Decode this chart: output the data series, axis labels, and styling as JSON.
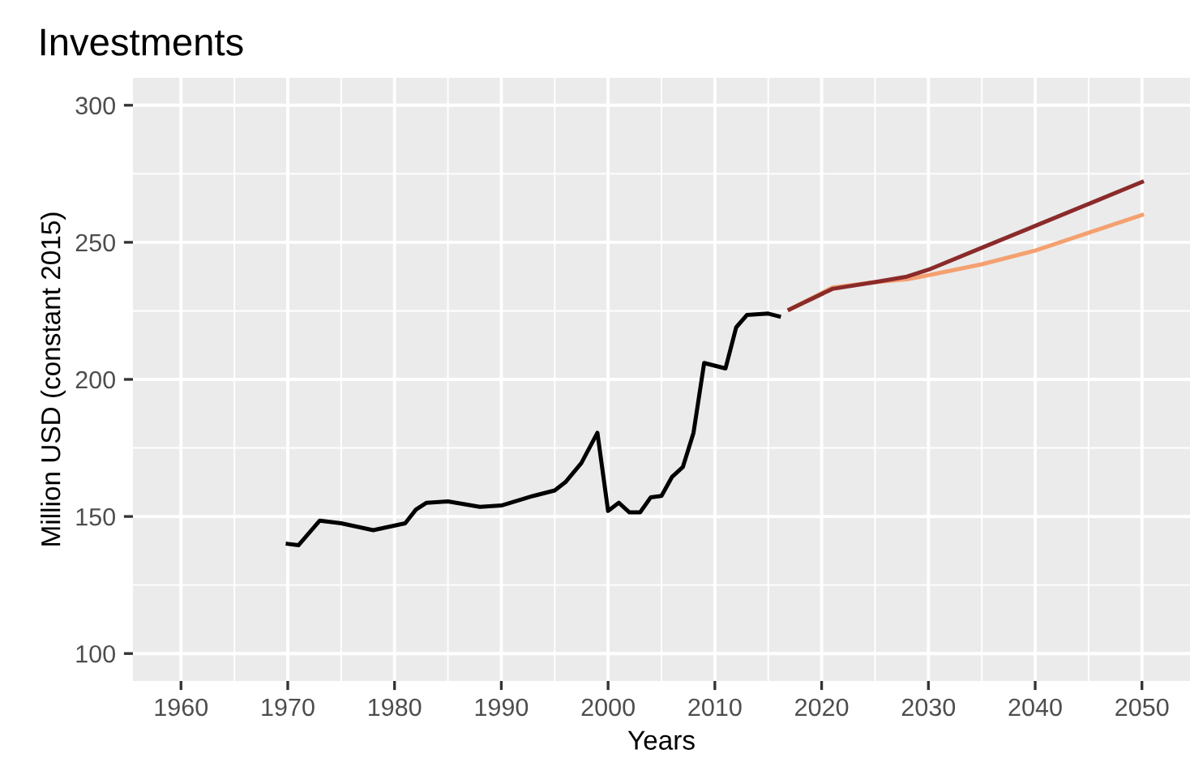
{
  "chart_data": {
    "type": "line",
    "title": "Investments",
    "xlabel": "Years",
    "ylabel": "Million USD (constant 2015)",
    "xlim": [
      1955.5,
      2054.5
    ],
    "xticks": [
      1960,
      1970,
      1980,
      1990,
      2000,
      2010,
      2020,
      2030,
      2040,
      2050
    ],
    "ylim": [
      90,
      310
    ],
    "yticks": [
      100,
      150,
      200,
      250,
      300
    ],
    "grid": true,
    "marker": "none",
    "line_style": "solid",
    "series": [
      {
        "color": "#000000",
        "x": [
          1970,
          1971,
          1973,
          1975,
          1978,
          1981,
          1982,
          1983,
          1985,
          1988,
          1990,
          1993,
          1995,
          1996,
          1997.5,
          1999,
          2000,
          2001,
          2002,
          2003,
          2004,
          2005,
          2006,
          2007,
          2008,
          2009,
          2011,
          2012,
          2013,
          2015,
          2016
        ],
        "values": [
          140,
          139.5,
          148.5,
          147.5,
          145,
          147.5,
          152.5,
          155,
          155.5,
          153.5,
          154,
          157.5,
          159.5,
          162.5,
          169.5,
          180.5,
          152,
          155,
          151.5,
          151.5,
          157,
          157.5,
          164.5,
          168,
          180.5,
          206,
          204,
          219,
          223.5,
          224,
          223
        ]
      },
      {
        "color": "#f4a070",
        "x": [
          2017,
          2021,
          2025,
          2028,
          2030,
          2035,
          2040,
          2045,
          2050
        ],
        "values": [
          225.5,
          233.5,
          235.5,
          236.5,
          238,
          242,
          247,
          253.5,
          260
        ]
      },
      {
        "color": "#8b2a2a",
        "x": [
          2017,
          2021,
          2025,
          2028,
          2030,
          2035,
          2040,
          2045,
          2050
        ],
        "values": [
          225.5,
          233,
          235.5,
          237.5,
          240,
          248,
          256,
          264,
          272
        ]
      }
    ]
  }
}
